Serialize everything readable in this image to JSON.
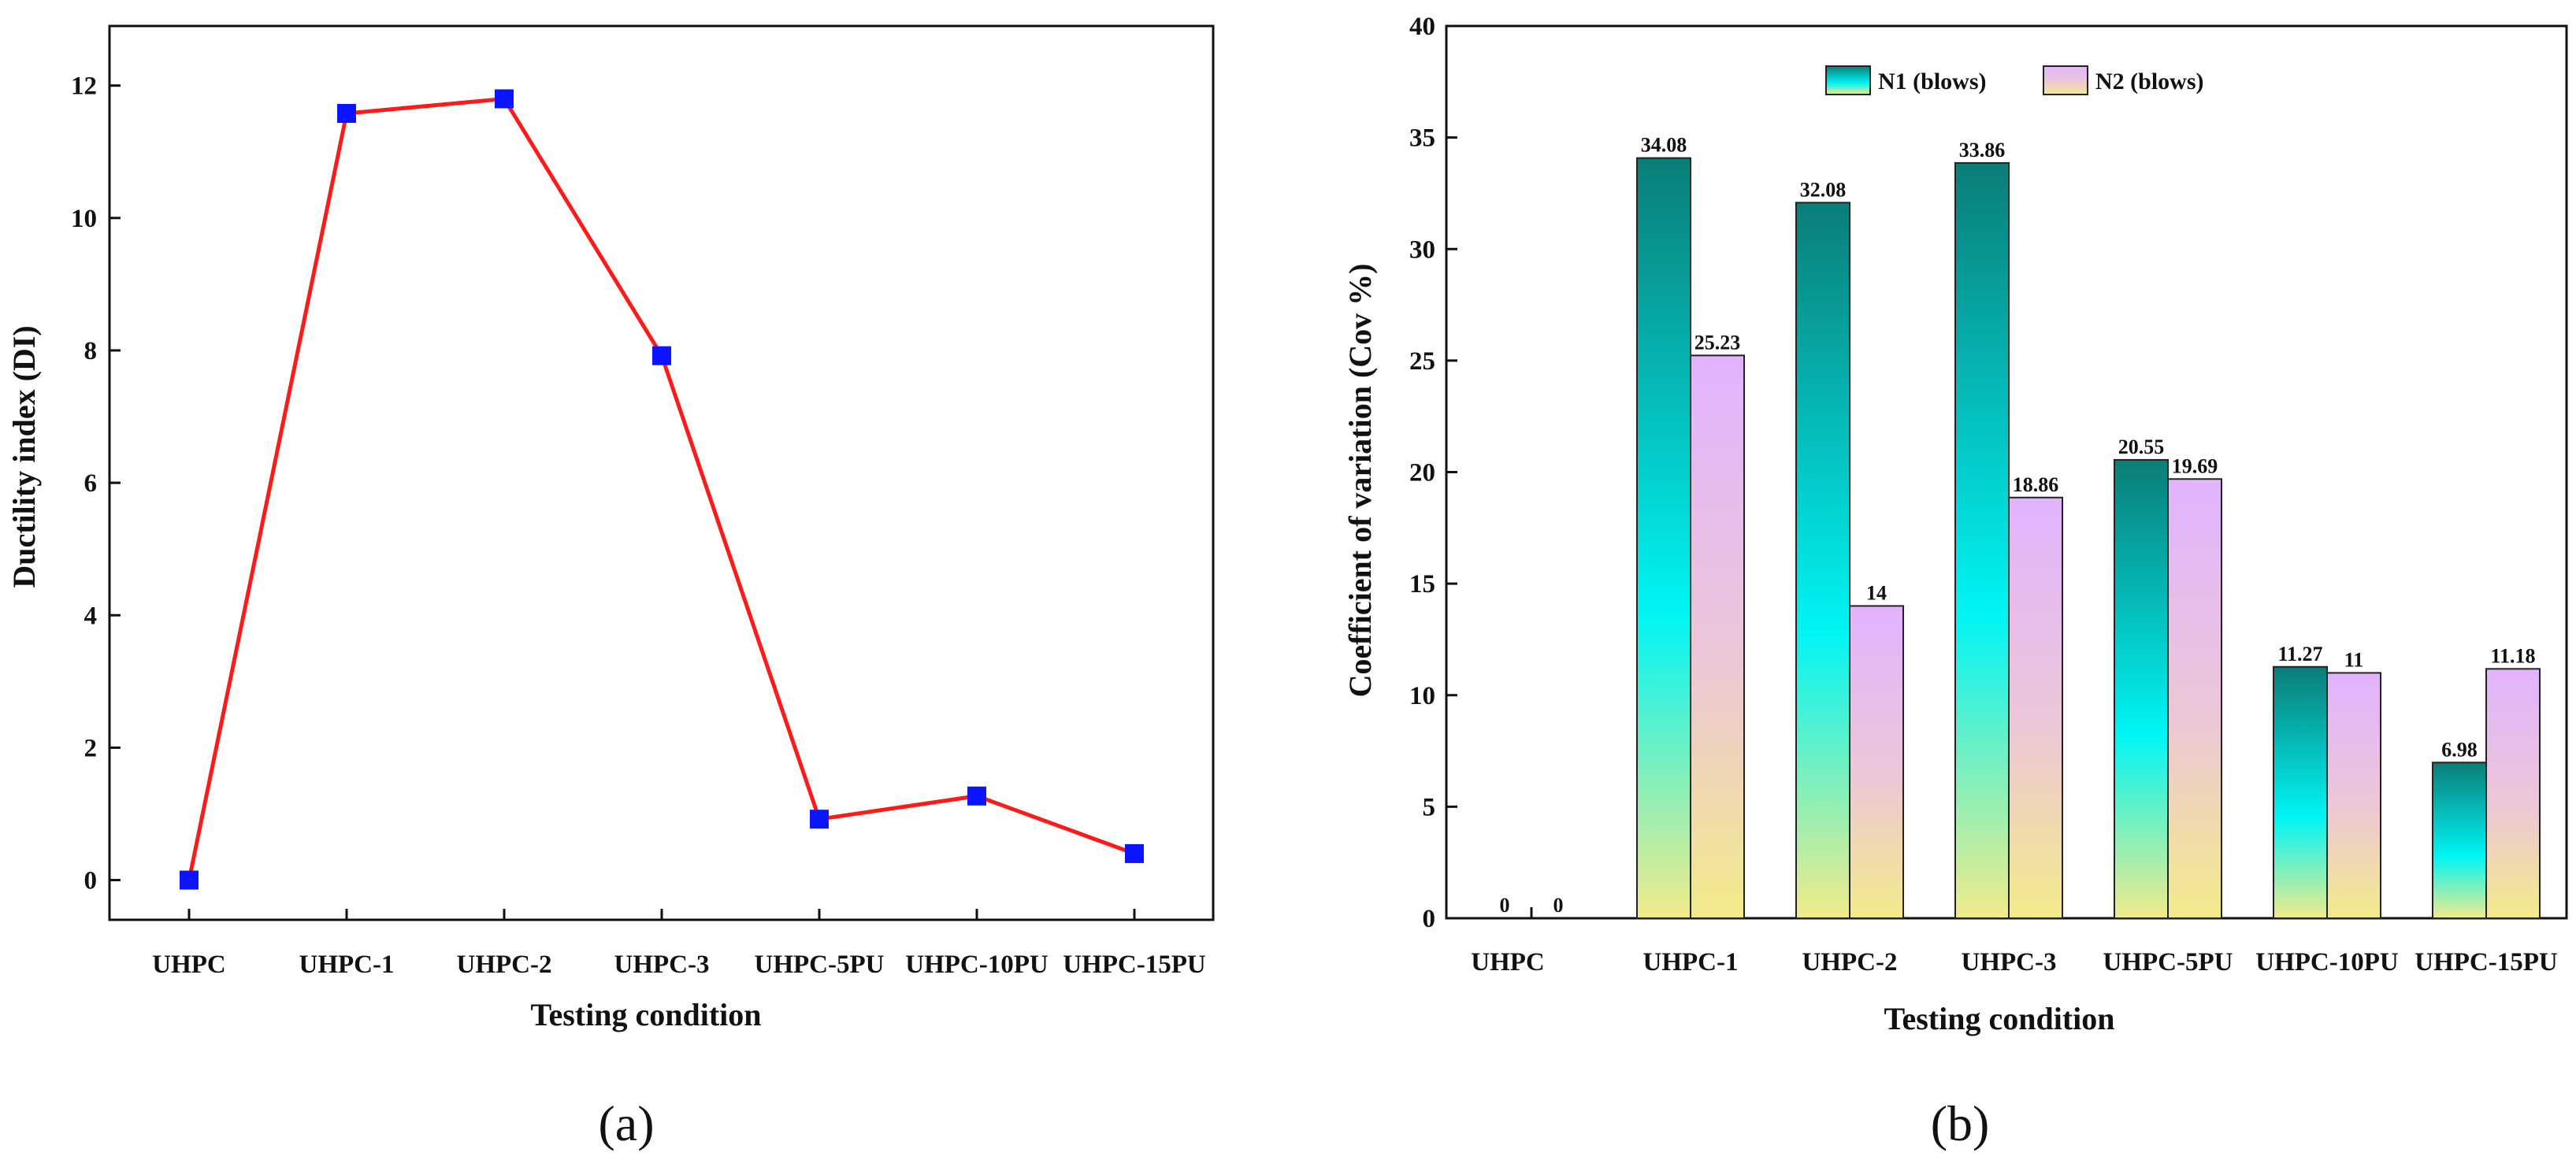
{
  "chart_data": [
    {
      "type": "line",
      "panel_label": "(a)",
      "categories": [
        "UHPC",
        "UHPC-1",
        "UHPC-2",
        "UHPC-3",
        "UHPC-5PU",
        "UHPC-10PU",
        "UHPC-15PU"
      ],
      "values": [
        0,
        11.58,
        11.8,
        7.92,
        0.92,
        1.27,
        0.4
      ],
      "xlabel": "Testing condition",
      "ylabel": "Ductility index (DI)",
      "ylim": [
        -0.6,
        12.9
      ],
      "yticks": [
        0,
        2,
        4,
        6,
        8,
        10,
        12
      ],
      "line_color": "#ff1a1a",
      "marker_color": "#0a14ff",
      "grid": false
    },
    {
      "type": "bar",
      "panel_label": "(b)",
      "categories": [
        "UHPC",
        "UHPC-1",
        "UHPC-2",
        "UHPC-3",
        "UHPC-5PU",
        "UHPC-10PU",
        "UHPC-15PU"
      ],
      "series": [
        {
          "name": "N1 (blows)",
          "values": [
            0,
            34.08,
            32.08,
            33.86,
            20.55,
            11.27,
            6.98
          ],
          "labels": [
            "0",
            "34.08",
            "32.08",
            "33.86",
            "20.55",
            "11.27",
            "6.98"
          ],
          "colors": [
            "#0a7d78",
            "#00f5f5",
            "#f2eb8a"
          ]
        },
        {
          "name": "N2 (blows)",
          "values": [
            0,
            25.23,
            14,
            18.86,
            19.69,
            11,
            11.18
          ],
          "labels": [
            "0",
            "25.23",
            "14",
            "18.86",
            "19.69",
            "11",
            "11.18"
          ],
          "colors": [
            "#e2b3ff",
            "#edc7d6",
            "#f2eb8a"
          ]
        }
      ],
      "xlabel": "Testing condition",
      "ylabel": "Coefficient of variation (Cov %)",
      "ylim": [
        0,
        40
      ],
      "yticks": [
        0,
        5,
        10,
        15,
        20,
        25,
        30,
        35,
        40
      ],
      "legend_position": "top-center",
      "grid": false
    }
  ]
}
